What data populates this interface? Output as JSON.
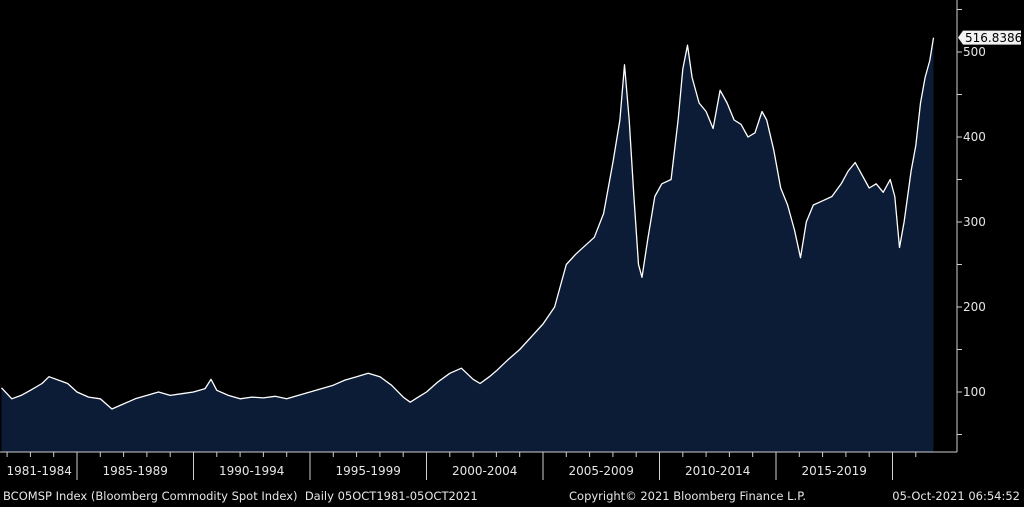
{
  "chart_data": {
    "type": "area",
    "title": "BCOMSP Index (Bloomberg Commodity Spot Index)",
    "frequency": "Daily",
    "range_label": "05OCT1981-05OCT2021",
    "xlabel": "",
    "ylabel": "",
    "xlim": [
      1981.76,
      2021.76
    ],
    "ylim": [
      30,
      560
    ],
    "y_ticks": [
      100,
      200,
      300,
      400,
      500
    ],
    "x_tick_labels": [
      "1981-1984",
      "1985-1989",
      "1990-1994",
      "1995-1999",
      "2000-2004",
      "2005-2009",
      "2010-2014",
      "2015-2019"
    ],
    "x_tick_bounds": [
      [
        1981.76,
        1985
      ],
      [
        1985,
        1990
      ],
      [
        1990,
        1995
      ],
      [
        1995,
        2000
      ],
      [
        2000,
        2005
      ],
      [
        2005,
        2010
      ],
      [
        2010,
        2015
      ],
      [
        2015,
        2020
      ]
    ],
    "last_value": "516.8386",
    "grid": false,
    "series": [
      {
        "name": "BCOMSP Index",
        "x": [
          1981.76,
          1982.2,
          1982.6,
          1983.0,
          1983.5,
          1983.8,
          1984.2,
          1984.6,
          1985.0,
          1985.5,
          1986.0,
          1986.5,
          1987.0,
          1987.5,
          1988.0,
          1988.5,
          1989.0,
          1989.5,
          1990.0,
          1990.5,
          1990.75,
          1991.0,
          1991.5,
          1992.0,
          1992.5,
          1993.0,
          1993.5,
          1994.0,
          1994.5,
          1995.0,
          1995.5,
          1996.0,
          1996.5,
          1997.0,
          1997.5,
          1998.0,
          1998.5,
          1999.0,
          1999.3,
          1999.7,
          2000.0,
          2000.5,
          2001.0,
          2001.5,
          2002.0,
          2002.3,
          2002.7,
          2003.0,
          2003.5,
          2004.0,
          2004.5,
          2005.0,
          2005.5,
          2006.0,
          2006.4,
          2006.8,
          2007.2,
          2007.6,
          2008.0,
          2008.3,
          2008.5,
          2008.7,
          2008.9,
          2009.1,
          2009.25,
          2009.5,
          2009.8,
          2010.1,
          2010.5,
          2010.8,
          2011.0,
          2011.2,
          2011.4,
          2011.7,
          2012.0,
          2012.3,
          2012.6,
          2012.9,
          2013.2,
          2013.5,
          2013.8,
          2014.1,
          2014.4,
          2014.6,
          2014.9,
          2015.2,
          2015.5,
          2015.8,
          2016.05,
          2016.3,
          2016.6,
          2017.0,
          2017.4,
          2017.8,
          2018.1,
          2018.4,
          2018.7,
          2019.0,
          2019.3,
          2019.6,
          2019.9,
          2020.1,
          2020.3,
          2020.5,
          2020.8,
          2021.0,
          2021.2,
          2021.4,
          2021.6,
          2021.76
        ],
        "y": [
          105,
          92,
          96,
          102,
          110,
          118,
          114,
          110,
          100,
          94,
          92,
          80,
          86,
          92,
          96,
          100,
          96,
          98,
          100,
          104,
          115,
          102,
          96,
          92,
          94,
          93,
          95,
          92,
          96,
          100,
          104,
          108,
          114,
          118,
          122,
          118,
          108,
          94,
          88,
          95,
          100,
          112,
          122,
          128,
          115,
          110,
          118,
          125,
          138,
          150,
          165,
          180,
          200,
          250,
          262,
          272,
          282,
          310,
          370,
          420,
          485,
          420,
          330,
          250,
          235,
          280,
          330,
          345,
          350,
          420,
          480,
          508,
          470,
          440,
          430,
          410,
          455,
          440,
          420,
          415,
          400,
          405,
          430,
          420,
          385,
          340,
          320,
          290,
          258,
          300,
          320,
          325,
          330,
          345,
          360,
          370,
          355,
          340,
          345,
          335,
          350,
          330,
          270,
          300,
          360,
          390,
          440,
          470,
          490,
          516.84
        ]
      }
    ]
  },
  "footer": {
    "index_label": "BCOMSP Index (Bloomberg Commodity Spot Index)  Daily 05OCT1981-05OCT2021",
    "copyright": "Copyright© 2021 Bloomberg Finance L.P.",
    "timestamp": "05-Oct-2021 06:54:52"
  },
  "colors": {
    "fill": "#0c1c36",
    "line": "#ffffff",
    "background": "#000000"
  }
}
